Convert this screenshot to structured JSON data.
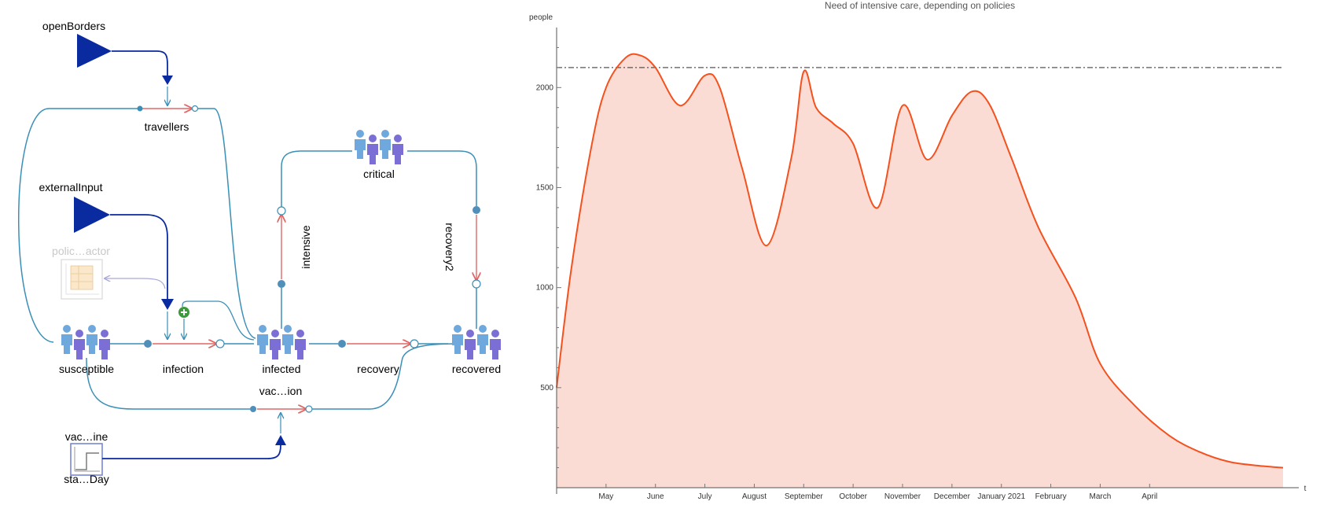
{
  "diagram": {
    "stocks": [
      {
        "id": "susceptible",
        "label": "susceptible"
      },
      {
        "id": "infected",
        "label": "infected"
      },
      {
        "id": "recovered",
        "label": "recovered"
      },
      {
        "id": "critical",
        "label": "critical"
      }
    ],
    "flows": [
      {
        "id": "travellers",
        "label": "travellers"
      },
      {
        "id": "infection",
        "label": "infection"
      },
      {
        "id": "recovery",
        "label": "recovery"
      },
      {
        "id": "intensive",
        "label": "intensive"
      },
      {
        "id": "recovery2",
        "label": "recovery2"
      },
      {
        "id": "vaccination",
        "label": "vac…ion"
      }
    ],
    "inputs": [
      {
        "id": "openBorders",
        "label": "openBorders"
      },
      {
        "id": "externalInput",
        "label": "externalInput"
      }
    ],
    "table": {
      "label": "polic…actor"
    },
    "step": {
      "label_top": "vac…ine",
      "label_bottom": "sta…Day"
    },
    "colors": {
      "flow": "#3a8fb7",
      "rate": "#e06666",
      "input": "#0a2aa0",
      "person_light": "#6fa8dc",
      "person_dark": "#7b6fd6",
      "plus": "#3c9a3c"
    }
  },
  "chart_data": {
    "type": "area",
    "title": "Need of intensive care, depending on policies",
    "xlabel": "t",
    "ylabel": "people",
    "x_ticks": [
      "May",
      "June",
      "July",
      "August",
      "September",
      "October",
      "November",
      "December",
      "January 2021",
      "February",
      "March",
      "April"
    ],
    "y_ticks": [
      500,
      1000,
      1500,
      2000
    ],
    "ylim": [
      0,
      2300
    ],
    "threshold": 2100,
    "x": [
      0.0,
      0.3,
      0.7,
      1.0,
      1.4,
      1.7,
      2.0,
      2.5,
      3.0,
      3.3,
      3.75,
      4.25,
      4.75,
      5.0,
      5.25,
      5.6,
      6.0,
      6.5,
      7.0,
      7.5,
      8.0,
      8.4,
      8.75,
      9.2,
      9.75,
      10.5,
      11.0,
      11.7,
      12.4,
      13.0,
      13.6,
      14.2,
      14.7
    ],
    "values": [
      500,
      1100,
      1700,
      2000,
      2150,
      2160,
      2100,
      1910,
      2060,
      2000,
      1600,
      1210,
      1650,
      2080,
      1900,
      1820,
      1720,
      1400,
      1910,
      1640,
      1860,
      1980,
      1920,
      1650,
      1300,
      950,
      620,
      410,
      260,
      180,
      130,
      110,
      100
    ],
    "fill_color": "#fadcd4",
    "line_color": "#f4511e"
  }
}
